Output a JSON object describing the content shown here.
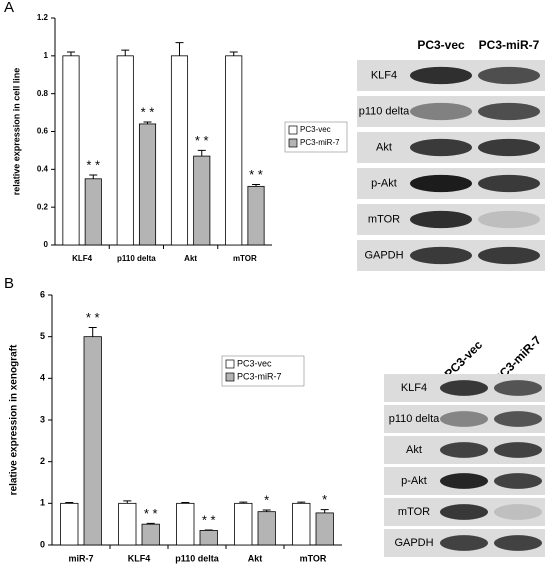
{
  "panel_labels": [
    "A",
    "B"
  ],
  "chart_data": [
    {
      "type": "bar",
      "y_label": "relative expression in cell line",
      "categories": [
        "KLF4",
        "p110 delta",
        "Akt",
        "mTOR"
      ],
      "series": [
        {
          "name": "PC3-vec",
          "color": "#ffffff",
          "values": [
            1,
            1,
            1,
            1
          ],
          "errors": [
            0.02,
            0.03,
            0.07,
            0.02
          ]
        },
        {
          "name": "PC3-miR-7",
          "color": "#b4b4b4",
          "values": [
            0.35,
            0.64,
            0.47,
            0.31
          ],
          "errors": [
            0.02,
            0.01,
            0.03,
            0.01
          ],
          "annotations": [
            "* *",
            "* *",
            "* *",
            "* *"
          ]
        }
      ],
      "ylim": [
        0,
        1.2
      ],
      "yticks": [
        0,
        0.2,
        0.4,
        0.6,
        0.8,
        1,
        1.2
      ],
      "grid": false
    },
    {
      "type": "bar",
      "y_label": "relative expression in xenograft",
      "categories": [
        "miR-7",
        "KLF4",
        "p110 delta",
        "Akt",
        "mTOR"
      ],
      "series": [
        {
          "name": "PC3-vec",
          "color": "#ffffff",
          "values": [
            1,
            1,
            1,
            1,
            1
          ],
          "errors": [
            0.02,
            0.06,
            0.02,
            0.03,
            0.03
          ]
        },
        {
          "name": "PC3-miR-7",
          "color": "#b4b4b4",
          "values": [
            5,
            0.5,
            0.35,
            0.8,
            0.77
          ],
          "errors": [
            0.22,
            0.02,
            0.01,
            0.04,
            0.08
          ],
          "annotations": [
            "* *",
            "* *",
            "* *",
            "*",
            "*"
          ]
        }
      ],
      "ylim": [
        0,
        6
      ],
      "yticks": [
        0,
        1,
        2,
        3,
        4,
        5,
        6
      ],
      "grid": false
    }
  ],
  "blots": [
    {
      "columns": [
        "PC3-vec",
        "PC3-miR-7"
      ],
      "rows": [
        "KLF4",
        "p110 delta",
        "Akt",
        "p-Akt",
        "mTOR",
        "GAPDH"
      ]
    },
    {
      "columns": [
        "PC3-vec",
        "PC3-miR-7"
      ],
      "rows": [
        "KLF4",
        "p110 delta",
        "Akt",
        "p-Akt",
        "mTOR",
        "GAPDH"
      ]
    }
  ]
}
